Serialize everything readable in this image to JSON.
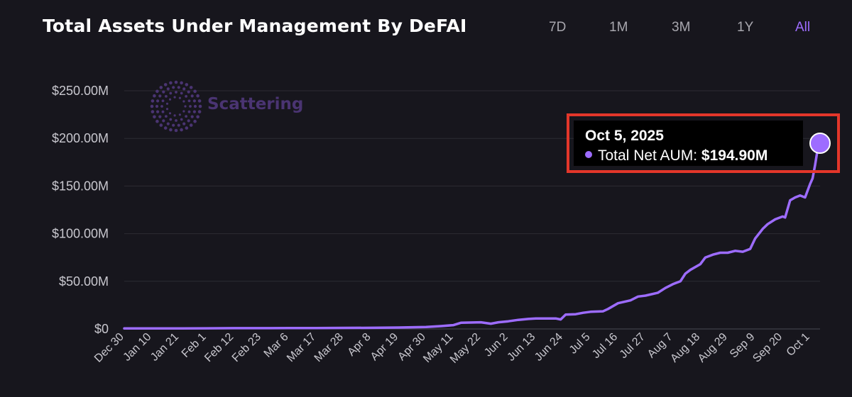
{
  "header": {
    "title": "Total Assets Under Management By DeFAI"
  },
  "ranges": [
    {
      "label": "7D",
      "active": false
    },
    {
      "label": "1M",
      "active": false
    },
    {
      "label": "3M",
      "active": false
    },
    {
      "label": "1Y",
      "active": false
    },
    {
      "label": "All",
      "active": true
    }
  ],
  "watermark": {
    "text": "Scattering",
    "icon": "dotted-circle-logo-icon"
  },
  "tooltip": {
    "date": "Oct 5, 2025",
    "series_label": "Total Net AUM:",
    "value_text": "$194.90M",
    "highlight_color": "#e3362a"
  },
  "colors": {
    "line": "#9d6cff",
    "accent": "#9d6cff",
    "background": "#17161d"
  },
  "chart_data": {
    "type": "line",
    "title": "Total Assets Under Management By DeFAI",
    "ylim": [
      0,
      250
    ],
    "y_unit": "$M",
    "y_ticks": [
      0,
      50,
      100,
      150,
      200,
      250
    ],
    "y_tick_labels": [
      "$0",
      "$50.00M",
      "$100.00M",
      "$150.00M",
      "$200.00M",
      "$250.00M"
    ],
    "x_range": [
      "2024-12-30",
      "2025-10-05"
    ],
    "x_tick_labels": [
      "Dec 30",
      "Jan 10",
      "Jan 21",
      "Feb 1",
      "Feb 12",
      "Feb 23",
      "Mar 6",
      "Mar 17",
      "Mar 28",
      "Apr 8",
      "Apr 19",
      "Apr 30",
      "May 11",
      "May 22",
      "Jun 2",
      "Jun 13",
      "Jun 24",
      "Jul 5",
      "Jul 16",
      "Jul 27",
      "Aug 7",
      "Aug 18",
      "Aug 29",
      "Sep 9",
      "Sep 20",
      "Oct 1"
    ],
    "x_tick_dates": [
      "2024-12-30",
      "2025-01-10",
      "2025-01-21",
      "2025-02-01",
      "2025-02-12",
      "2025-02-23",
      "2025-03-06",
      "2025-03-17",
      "2025-03-28",
      "2025-04-08",
      "2025-04-19",
      "2025-04-30",
      "2025-05-11",
      "2025-05-22",
      "2025-06-02",
      "2025-06-13",
      "2025-06-24",
      "2025-07-05",
      "2025-07-16",
      "2025-07-27",
      "2025-08-07",
      "2025-08-18",
      "2025-08-29",
      "2025-09-09",
      "2025-09-20",
      "2025-10-01"
    ],
    "grid": "horizontal",
    "series": [
      {
        "points": [
          [
            "2024-12-30",
            0.5
          ],
          [
            "2025-01-10",
            0.5
          ],
          [
            "2025-01-21",
            0.6
          ],
          [
            "2025-02-01",
            0.7
          ],
          [
            "2025-02-12",
            0.8
          ],
          [
            "2025-02-23",
            0.8
          ],
          [
            "2025-03-06",
            0.9
          ],
          [
            "2025-03-17",
            1.0
          ],
          [
            "2025-03-28",
            1.1
          ],
          [
            "2025-04-08",
            1.2
          ],
          [
            "2025-04-19",
            1.5
          ],
          [
            "2025-04-30",
            2.0
          ],
          [
            "2025-05-06",
            3.0
          ],
          [
            "2025-05-11",
            4.0
          ],
          [
            "2025-05-14",
            6.5
          ],
          [
            "2025-05-22",
            7.0
          ],
          [
            "2025-05-26",
            5.5
          ],
          [
            "2025-05-29",
            7.0
          ],
          [
            "2025-06-02",
            8.0
          ],
          [
            "2025-06-06",
            9.5
          ],
          [
            "2025-06-10",
            10.5
          ],
          [
            "2025-06-13",
            11.0
          ],
          [
            "2025-06-18",
            11.0
          ],
          [
            "2025-06-21",
            11.0
          ],
          [
            "2025-06-23",
            10.0
          ],
          [
            "2025-06-25",
            15.0
          ],
          [
            "2025-06-29",
            15.5
          ],
          [
            "2025-07-02",
            17.0
          ],
          [
            "2025-07-05",
            18.0
          ],
          [
            "2025-07-10",
            18.5
          ],
          [
            "2025-07-12",
            21.0
          ],
          [
            "2025-07-16",
            27.0
          ],
          [
            "2025-07-21",
            30.0
          ],
          [
            "2025-07-24",
            34.0
          ],
          [
            "2025-07-27",
            35.0
          ],
          [
            "2025-08-01",
            38.0
          ],
          [
            "2025-08-04",
            43.0
          ],
          [
            "2025-08-07",
            47.0
          ],
          [
            "2025-08-10",
            50.0
          ],
          [
            "2025-08-12",
            58.0
          ],
          [
            "2025-08-14",
            62.0
          ],
          [
            "2025-08-18",
            68.0
          ],
          [
            "2025-08-20",
            75.0
          ],
          [
            "2025-08-23",
            78.0
          ],
          [
            "2025-08-26",
            80.0
          ],
          [
            "2025-08-29",
            80.0
          ],
          [
            "2025-09-01",
            82.0
          ],
          [
            "2025-09-04",
            81.0
          ],
          [
            "2025-09-07",
            84.0
          ],
          [
            "2025-09-09",
            95.0
          ],
          [
            "2025-09-12",
            105.0
          ],
          [
            "2025-09-14",
            110.0
          ],
          [
            "2025-09-17",
            115.0
          ],
          [
            "2025-09-20",
            118.0
          ],
          [
            "2025-09-21",
            117.0
          ],
          [
            "2025-09-23",
            135.0
          ],
          [
            "2025-09-25",
            138.0
          ],
          [
            "2025-09-27",
            140.0
          ],
          [
            "2025-09-29",
            138.0
          ],
          [
            "2025-10-01",
            152.0
          ],
          [
            "2025-10-02",
            158.0
          ],
          [
            "2025-10-03",
            172.0
          ],
          [
            "2025-10-04",
            188.0
          ],
          [
            "2025-10-05",
            194.9
          ]
        ]
      }
    ]
  }
}
